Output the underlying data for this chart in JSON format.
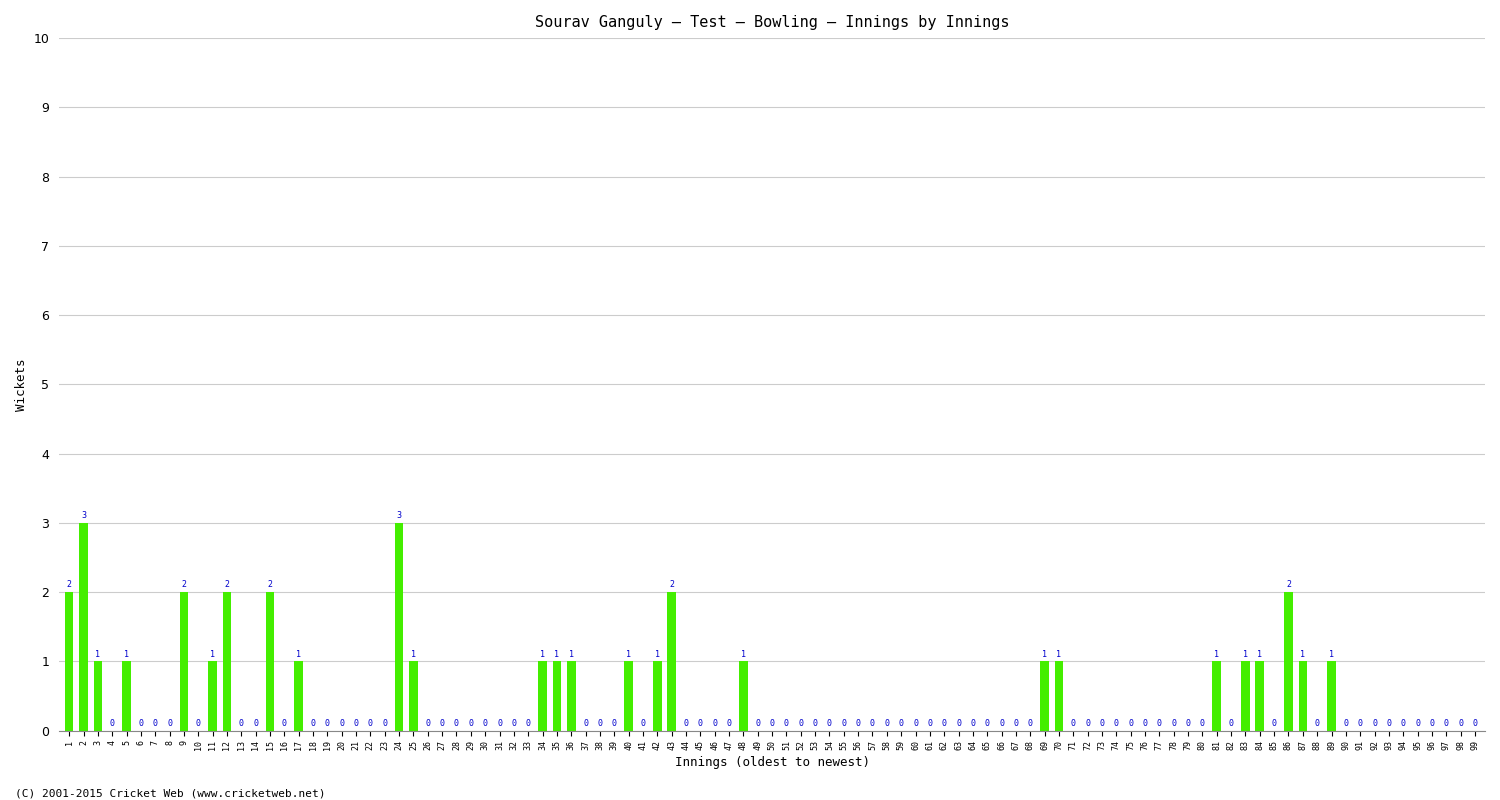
{
  "title": "Sourav Ganguly – Test – Bowling – Innings by Innings",
  "xlabel": "Innings (oldest to newest)",
  "ylabel": "Wickets",
  "bar_color": "#44ee00",
  "label_color": "#0000cc",
  "background_color": "#ffffff",
  "grid_color": "#cccccc",
  "ylim": [
    0,
    10
  ],
  "yticks": [
    0,
    1,
    2,
    3,
    4,
    5,
    6,
    7,
    8,
    9,
    10
  ],
  "footer": "(C) 2001-2015 Cricket Web (www.cricketweb.net)",
  "innings_labels": [
    "1",
    "2",
    "3",
    "4",
    "5",
    "6",
    "7",
    "8",
    "9",
    "10",
    "11",
    "12",
    "13",
    "14",
    "15",
    "16",
    "17",
    "18",
    "19",
    "20",
    "21",
    "22",
    "23",
    "24",
    "25",
    "26",
    "27",
    "28",
    "29",
    "30",
    "31",
    "32",
    "33",
    "34",
    "35",
    "36",
    "37",
    "38",
    "39",
    "40",
    "41",
    "42",
    "43",
    "44",
    "45",
    "46",
    "47",
    "48",
    "49",
    "50",
    "51",
    "52",
    "53",
    "54",
    "55",
    "56",
    "57",
    "58",
    "59",
    "60",
    "61",
    "62",
    "63",
    "64",
    "65",
    "66",
    "67",
    "68",
    "69",
    "70",
    "71",
    "72",
    "73",
    "74",
    "75",
    "76",
    "77",
    "78",
    "79",
    "80",
    "81",
    "82",
    "83",
    "84",
    "85",
    "86",
    "87",
    "88",
    "89",
    "90",
    "91",
    "92",
    "93",
    "94",
    "95",
    "96",
    "97",
    "98",
    "99"
  ],
  "wickets": [
    2,
    3,
    1,
    0,
    1,
    0,
    0,
    0,
    2,
    0,
    1,
    2,
    0,
    0,
    2,
    0,
    1,
    0,
    0,
    0,
    0,
    0,
    0,
    3,
    1,
    0,
    0,
    0,
    0,
    0,
    0,
    0,
    0,
    1,
    1,
    1,
    0,
    0,
    0,
    1,
    0,
    1,
    2,
    0,
    0,
    0,
    0,
    1,
    0,
    0,
    0,
    0,
    0,
    0,
    0,
    0,
    0,
    0,
    0,
    0,
    0,
    0,
    0,
    0,
    0,
    0,
    0,
    0,
    1,
    1,
    0,
    0,
    0,
    0,
    0,
    0,
    0,
    0,
    0,
    0,
    1,
    0,
    1,
    1,
    0,
    2,
    1,
    0,
    1,
    0,
    0,
    0,
    0,
    0,
    0,
    0,
    0,
    0,
    0
  ]
}
